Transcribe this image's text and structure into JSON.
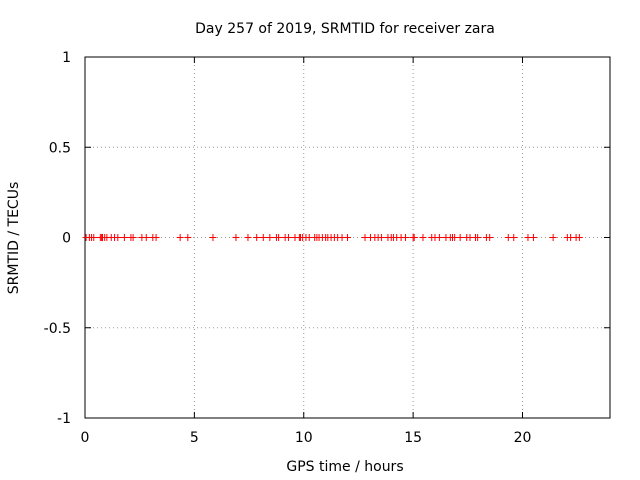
{
  "chart_data": {
    "type": "scatter",
    "title": "Day 257 of 2019, SRMTID for receiver zara",
    "xlabel": "GPS time / hours",
    "ylabel": "SRMTID / TECUs",
    "xlim": [
      0,
      24
    ],
    "ylim": [
      -1,
      1
    ],
    "xticks": [
      0,
      5,
      10,
      15,
      20
    ],
    "xtick_labels": [
      "0",
      "5",
      "10",
      "15",
      "20"
    ],
    "yticks": [
      -1,
      -0.5,
      0,
      0.5,
      1
    ],
    "ytick_labels": [
      "-1",
      "-0.5",
      "0",
      "0.5",
      "1"
    ],
    "grid": true,
    "marker": "+",
    "marker_color": "#ff0000",
    "series": [
      {
        "name": "SRMTID",
        "x": [
          0.05,
          0.2,
          0.3,
          0.4,
          0.7,
          0.75,
          0.8,
          0.9,
          1.0,
          1.2,
          1.35,
          1.5,
          1.8,
          2.1,
          2.2,
          2.6,
          2.8,
          3.1,
          3.25,
          4.35,
          4.7,
          5.85,
          6.9,
          7.45,
          7.85,
          8.15,
          8.45,
          8.75,
          8.85,
          9.15,
          9.3,
          9.6,
          9.8,
          9.85,
          9.95,
          10.1,
          10.25,
          10.5,
          10.6,
          10.7,
          10.85,
          11.0,
          11.1,
          11.25,
          11.4,
          11.55,
          11.75,
          12.0,
          12.8,
          13.05,
          13.25,
          13.4,
          13.55,
          13.85,
          14.0,
          14.1,
          14.25,
          14.45,
          14.65,
          15.0,
          15.05,
          15.45,
          15.85,
          16.0,
          16.2,
          16.5,
          16.7,
          16.8,
          16.9,
          17.15,
          17.45,
          17.6,
          17.85,
          17.95,
          18.35,
          18.5,
          19.35,
          19.6,
          20.25,
          20.5,
          21.4,
          22.05,
          22.2,
          22.45,
          22.6
        ],
        "y": [
          0,
          0,
          0,
          0,
          0,
          0,
          0,
          0,
          0,
          0,
          0,
          0,
          0,
          0,
          0,
          0,
          0,
          0,
          0,
          0,
          0,
          0,
          0,
          0,
          0,
          0,
          0,
          0,
          0,
          0,
          0,
          0,
          0,
          0,
          0,
          0,
          0,
          0,
          0,
          0,
          0,
          0,
          0,
          0,
          0,
          0,
          0,
          0,
          0,
          0,
          0,
          0,
          0,
          0,
          0,
          0,
          0,
          0,
          0,
          0,
          0,
          0,
          0,
          0,
          0,
          0,
          0,
          0,
          0,
          0,
          0,
          0,
          0,
          0,
          0,
          0,
          0,
          0,
          0,
          0,
          0,
          0,
          0,
          0,
          0
        ]
      }
    ]
  }
}
